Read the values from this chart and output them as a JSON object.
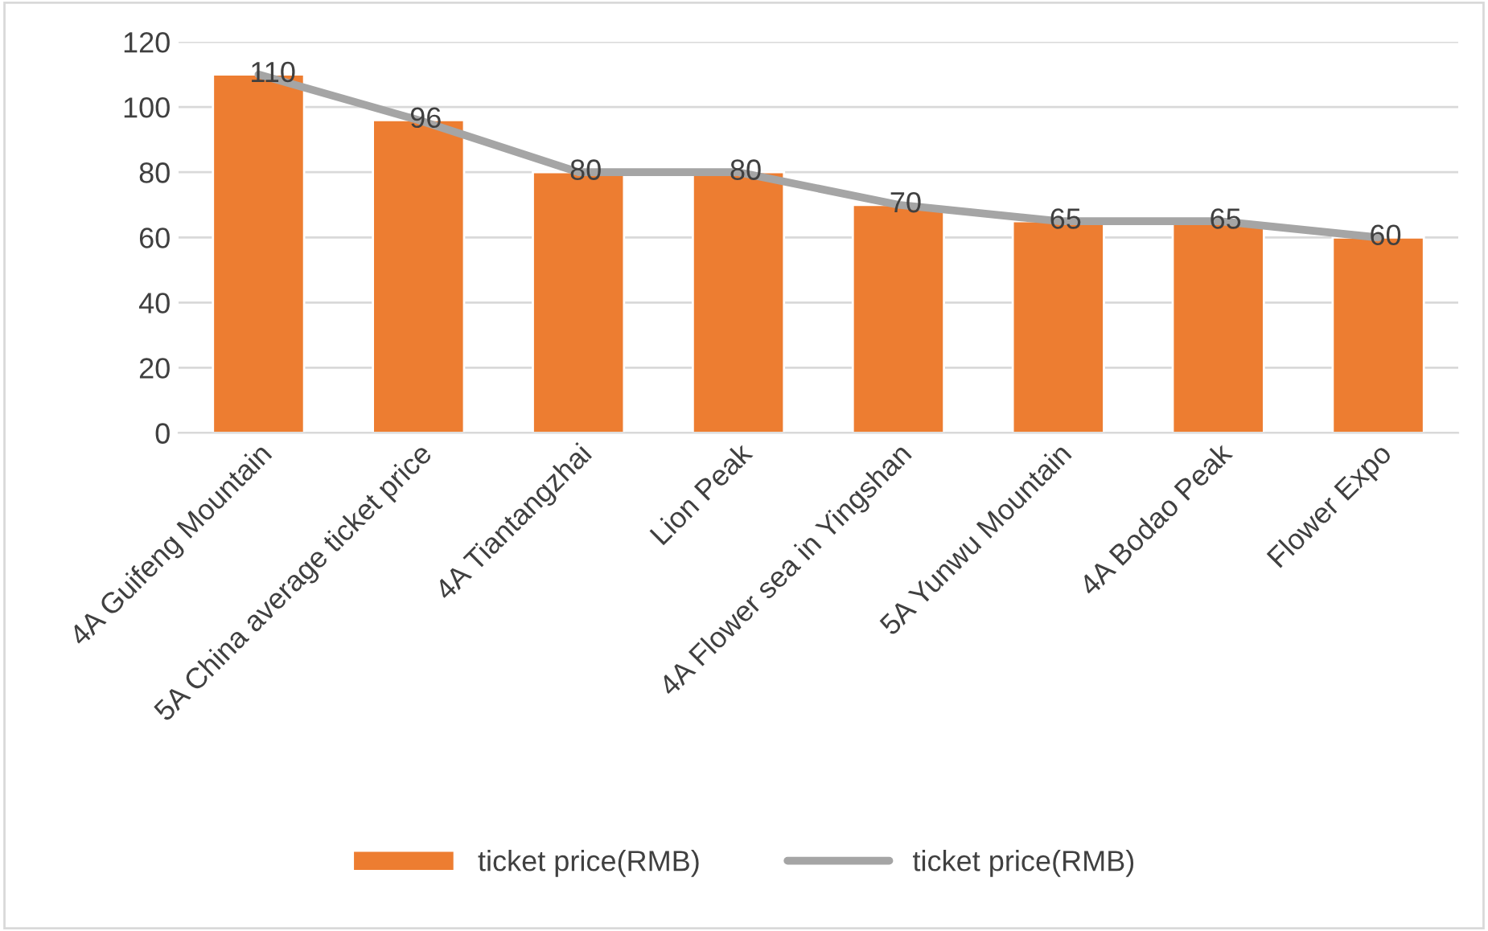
{
  "chart_data": {
    "type": "bar",
    "categories": [
      "4A Guifeng Mountain",
      "5A China average ticket price",
      "4A Tiantangzhai",
      "Lion Peak",
      "4A Flower sea in Yingshan",
      "5A Yunwu Mountain",
      "4A Bodao Peak",
      "Flower Expo"
    ],
    "series": [
      {
        "name": "ticket price(RMB)",
        "color": "#ed7d31",
        "values": [
          110,
          96,
          80,
          80,
          70,
          65,
          65,
          60
        ]
      },
      {
        "name": "ticket price(RMB)",
        "type": "line",
        "color": "#a5a5a5",
        "values": [
          110,
          96,
          80,
          80,
          70,
          65,
          65,
          60
        ],
        "value_labels": [
          "110",
          "96",
          "80",
          "80",
          "70",
          "65",
          "65",
          "60"
        ]
      }
    ],
    "ylim": [
      0,
      120
    ],
    "yticks": [
      0,
      20,
      40,
      60,
      80,
      100,
      120
    ],
    "grid": "y",
    "legend": "bottom",
    "marker": "none",
    "line_style": "solid"
  }
}
